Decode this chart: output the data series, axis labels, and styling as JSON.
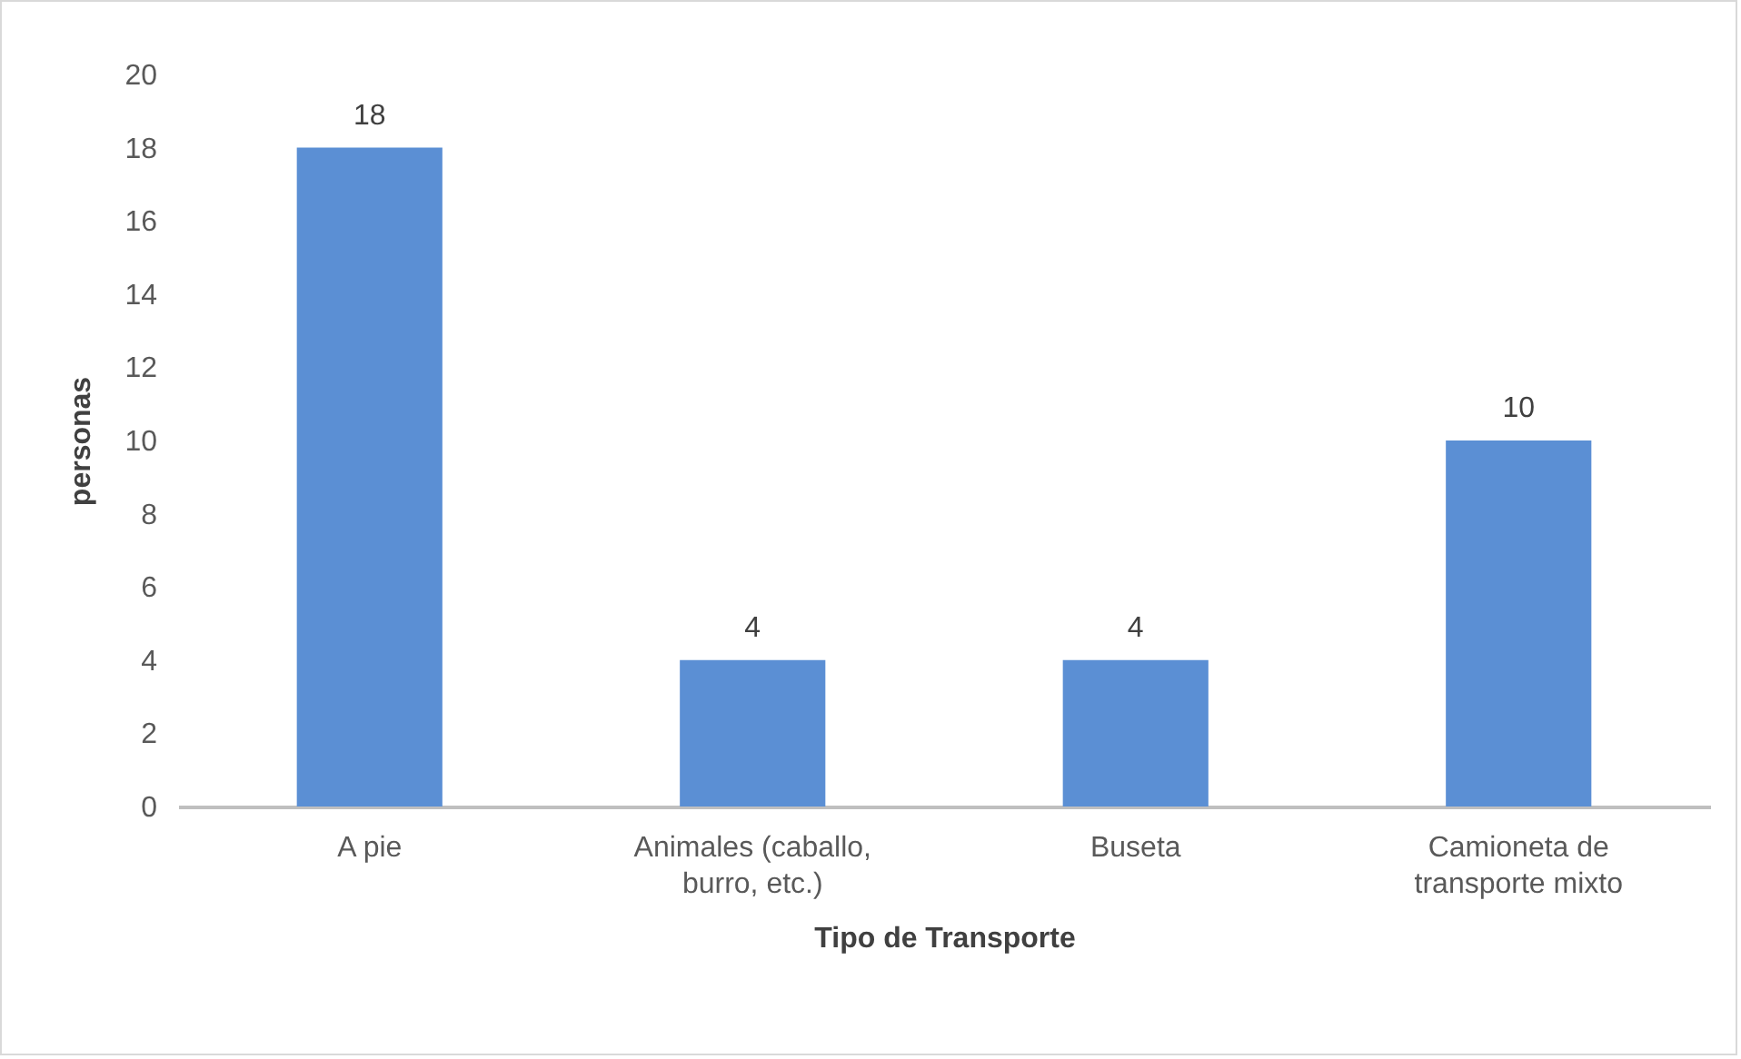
{
  "chart_data": {
    "type": "bar",
    "xlabel": "Tipo de Transporte",
    "ylabel": "personas",
    "categories": [
      "A pie",
      "Animales (caballo, burro, etc.)",
      "Buseta",
      "Camioneta de transporte mixto"
    ],
    "values": [
      18,
      4,
      4,
      10
    ],
    "color": "#5b8fd4",
    "ylim": [
      0,
      20
    ],
    "yticks": [
      0,
      2,
      4,
      6,
      8,
      10,
      12,
      14,
      16,
      18,
      20
    ],
    "grid": false,
    "data_labels": true
  }
}
